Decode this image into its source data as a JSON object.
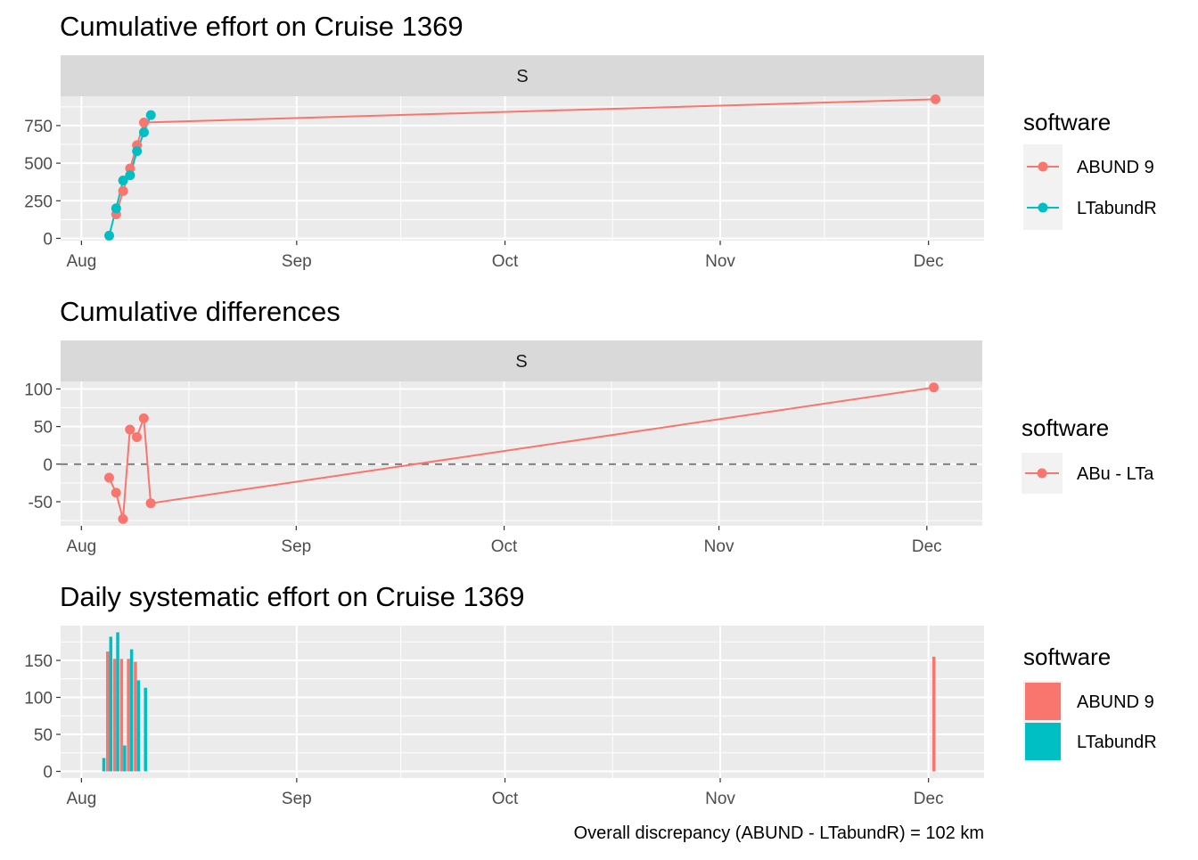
{
  "caption": "Overall discrepancy (ABUND - LTabundR) = 102 km",
  "colors": {
    "abund": "#F8766D",
    "ltabundr": "#00BFC4",
    "panel_bg": "#EBEBEB",
    "strip_bg": "#D9D9D9",
    "grid": "#FFFFFF",
    "zero_line": "#7F7F7F"
  },
  "chart_data": [
    {
      "type": "line",
      "title": "Cumulative effort on Cruise 1369",
      "strip": "S",
      "x_type": "date",
      "x_ticks": [
        {
          "date": "2018-08-01",
          "label": "Aug"
        },
        {
          "date": "2018-09-01",
          "label": "Sep"
        },
        {
          "date": "2018-10-01",
          "label": "Oct"
        },
        {
          "date": "2018-11-01",
          "label": "Nov"
        },
        {
          "date": "2018-12-01",
          "label": "Dec"
        }
      ],
      "xlim": [
        "2018-07-29",
        "2018-12-09"
      ],
      "y_ticks": [
        0,
        250,
        500,
        750
      ],
      "ylim": [
        -15,
        945
      ],
      "legend": {
        "title": "software",
        "position": "right"
      },
      "series": [
        {
          "name": "ABUND 9",
          "color": "#F8766D",
          "points": [
            {
              "x": "2018-08-06",
              "y": 160
            },
            {
              "x": "2018-08-07",
              "y": 315
            },
            {
              "x": "2018-08-08",
              "y": 465
            },
            {
              "x": "2018-08-09",
              "y": 620
            },
            {
              "x": "2018-08-10",
              "y": 770
            },
            {
              "x": "2018-12-02",
              "y": 925
            }
          ]
        },
        {
          "name": "LTabundR",
          "color": "#00BFC4",
          "points": [
            {
              "x": "2018-08-05",
              "y": 18
            },
            {
              "x": "2018-08-06",
              "y": 200
            },
            {
              "x": "2018-08-07",
              "y": 385
            },
            {
              "x": "2018-08-08",
              "y": 420
            },
            {
              "x": "2018-08-09",
              "y": 580
            },
            {
              "x": "2018-08-10",
              "y": 705
            },
            {
              "x": "2018-08-11",
              "y": 820
            }
          ]
        }
      ]
    },
    {
      "type": "line",
      "title": "Cumulative differences",
      "strip": "S",
      "x_type": "date",
      "x_ticks": [
        {
          "date": "2018-08-01",
          "label": "Aug"
        },
        {
          "date": "2018-09-01",
          "label": "Sep"
        },
        {
          "date": "2018-10-01",
          "label": "Oct"
        },
        {
          "date": "2018-11-01",
          "label": "Nov"
        },
        {
          "date": "2018-12-01",
          "label": "Dec"
        }
      ],
      "xlim": [
        "2018-07-29",
        "2018-12-09"
      ],
      "y_ticks": [
        -50,
        0,
        50,
        100
      ],
      "ylim": [
        -82,
        110
      ],
      "reference_line": 0,
      "legend": {
        "title": "software",
        "position": "right"
      },
      "series": [
        {
          "name": "ABu - LTa",
          "color": "#F8766D",
          "points": [
            {
              "x": "2018-08-05",
              "y": -18
            },
            {
              "x": "2018-08-06",
              "y": -38
            },
            {
              "x": "2018-08-07",
              "y": -73
            },
            {
              "x": "2018-08-08",
              "y": 46
            },
            {
              "x": "2018-08-09",
              "y": 36
            },
            {
              "x": "2018-08-10",
              "y": 61
            },
            {
              "x": "2018-08-11",
              "y": -52
            },
            {
              "x": "2018-12-02",
              "y": 102
            }
          ]
        }
      ]
    },
    {
      "type": "bar",
      "title": "Daily systematic effort on Cruise 1369",
      "x_type": "date",
      "x_ticks": [
        {
          "date": "2018-08-01",
          "label": "Aug"
        },
        {
          "date": "2018-09-01",
          "label": "Sep"
        },
        {
          "date": "2018-10-01",
          "label": "Oct"
        },
        {
          "date": "2018-11-01",
          "label": "Nov"
        },
        {
          "date": "2018-12-01",
          "label": "Dec"
        }
      ],
      "xlim": [
        "2018-07-29",
        "2018-12-09"
      ],
      "y_ticks": [
        0,
        50,
        100,
        150
      ],
      "ylim": [
        -9,
        197
      ],
      "legend": {
        "title": "software",
        "position": "right"
      },
      "series": [
        {
          "name": "ABUND 9",
          "color": "#F8766D",
          "points": [
            {
              "x": "2018-08-05",
              "y": 162
            },
            {
              "x": "2018-08-06",
              "y": 152
            },
            {
              "x": "2018-08-07",
              "y": 152
            },
            {
              "x": "2018-08-08",
              "y": 152
            },
            {
              "x": "2018-08-09",
              "y": 148
            },
            {
              "x": "2018-12-02",
              "y": 155
            }
          ]
        },
        {
          "name": "LTabundR",
          "color": "#00BFC4",
          "points": [
            {
              "x": "2018-08-04",
              "y": 18
            },
            {
              "x": "2018-08-05",
              "y": 182
            },
            {
              "x": "2018-08-06",
              "y": 188
            },
            {
              "x": "2018-08-07",
              "y": 35
            },
            {
              "x": "2018-08-08",
              "y": 165
            },
            {
              "x": "2018-08-09",
              "y": 123
            },
            {
              "x": "2018-08-10",
              "y": 113
            }
          ]
        }
      ]
    }
  ]
}
